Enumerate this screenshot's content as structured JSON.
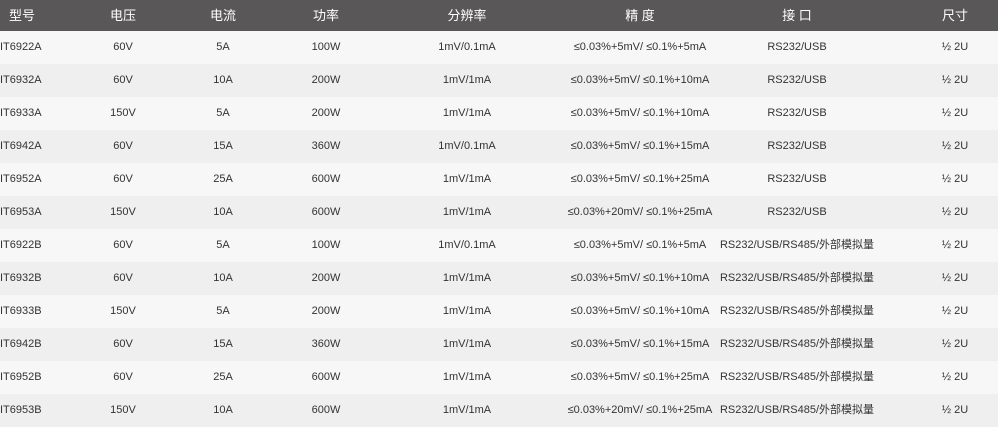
{
  "table": {
    "headers": [
      "型号",
      "电压",
      "电流",
      "功率",
      "分辨率",
      "精 度",
      "接 口",
      "尺寸"
    ],
    "rows": [
      [
        "IT6922A",
        "60V",
        "5A",
        "100W",
        "1mV/0.1mA",
        "≤0.03%+5mV/ ≤0.1%+5mA",
        "RS232/USB",
        "½ 2U"
      ],
      [
        "IT6932A",
        "60V",
        "10A",
        "200W",
        "1mV/1mA",
        "≤0.03%+5mV/ ≤0.1%+10mA",
        "RS232/USB",
        "½ 2U"
      ],
      [
        "IT6933A",
        "150V",
        "5A",
        "200W",
        "1mV/1mA",
        "≤0.03%+5mV/ ≤0.1%+10mA",
        "RS232/USB",
        "½ 2U"
      ],
      [
        "IT6942A",
        "60V",
        "15A",
        "360W",
        "1mV/0.1mA",
        "≤0.03%+5mV/ ≤0.1%+15mA",
        "RS232/USB",
        "½ 2U"
      ],
      [
        "IT6952A",
        "60V",
        "25A",
        "600W",
        "1mV/1mA",
        "≤0.03%+5mV/ ≤0.1%+25mA",
        "RS232/USB",
        "½ 2U"
      ],
      [
        "IT6953A",
        "150V",
        "10A",
        "600W",
        "1mV/1mA",
        "≤0.03%+20mV/ ≤0.1%+25mA",
        "RS232/USB",
        "½ 2U"
      ],
      [
        "IT6922B",
        "60V",
        "5A",
        "100W",
        "1mV/0.1mA",
        "≤0.03%+5mV/ ≤0.1%+5mA",
        "RS232/USB/RS485/外部模拟量",
        "½ 2U"
      ],
      [
        "IT6932B",
        "60V",
        "10A",
        "200W",
        "1mV/1mA",
        "≤0.03%+5mV/ ≤0.1%+10mA",
        "RS232/USB/RS485/外部模拟量",
        "½ 2U"
      ],
      [
        "IT6933B",
        "150V",
        "5A",
        "200W",
        "1mV/1mA",
        "≤0.03%+5mV/ ≤0.1%+10mA",
        "RS232/USB/RS485/外部模拟量",
        "½ 2U"
      ],
      [
        "IT6942B",
        "60V",
        "15A",
        "360W",
        "1mV/1mA",
        "≤0.03%+5mV/ ≤0.1%+15mA",
        "RS232/USB/RS485/外部模拟量",
        "½ 2U"
      ],
      [
        "IT6952B",
        "60V",
        "25A",
        "600W",
        "1mV/1mA",
        "≤0.03%+5mV/ ≤0.1%+25mA",
        "RS232/USB/RS485/外部模拟量",
        "½ 2U"
      ],
      [
        "IT6953B",
        "150V",
        "10A",
        "600W",
        "1mV/1mA",
        "≤0.03%+20mV/ ≤0.1%+25mA",
        "RS232/USB/RS485/外部模拟量",
        "½ 2U"
      ]
    ]
  },
  "colors": {
    "header_bg": "#595757",
    "row_odd": "#f7f7f7",
    "row_even": "#efefef"
  }
}
